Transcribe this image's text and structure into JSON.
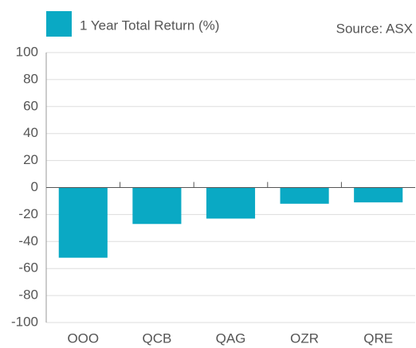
{
  "chart_data": {
    "type": "bar",
    "legend_label": "1 Year Total Return (%)",
    "source": "Source: ASX",
    "categories": [
      "OOO",
      "QCB",
      "QAG",
      "OZR",
      "QRE"
    ],
    "values": [
      -52,
      -27,
      -23,
      -12,
      -11
    ],
    "color": "#0aa9c4",
    "ylim": [
      -100,
      100
    ],
    "yticks": [
      -100,
      -80,
      -60,
      -40,
      -20,
      0,
      20,
      40,
      60,
      80,
      100
    ],
    "grid": true
  }
}
